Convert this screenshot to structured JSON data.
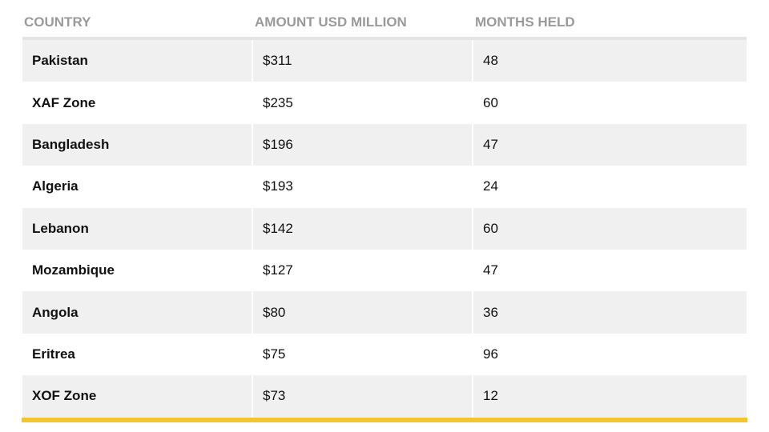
{
  "table": {
    "headers": [
      "COUNTRY",
      "AMOUNT USD MILLION",
      "MONTHS HELD"
    ],
    "rows": [
      [
        "Pakistan",
        "$311",
        "48"
      ],
      [
        "XAF Zone",
        "$235",
        "60"
      ],
      [
        "Bangladesh",
        "$196",
        "47"
      ],
      [
        "Algeria",
        "$193",
        "24"
      ],
      [
        "Lebanon",
        "$142",
        "60"
      ],
      [
        "Mozambique",
        "$127",
        "47"
      ],
      [
        "Angola",
        "$80",
        "36"
      ],
      [
        "Eritrea",
        "$75",
        "96"
      ],
      [
        "XOF Zone",
        "$73",
        "12"
      ]
    ]
  }
}
